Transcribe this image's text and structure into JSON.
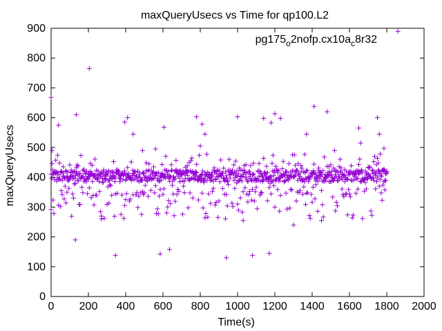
{
  "chart_data": {
    "type": "scatter",
    "title": "maxQueryUsecs vs Time for qp100.L2",
    "xlabel": "Time(s)",
    "ylabel": "maxQueryUsecs",
    "xlim": [
      0,
      2000
    ],
    "ylim": [
      0,
      900
    ],
    "x_ticks": [
      0,
      200,
      400,
      600,
      800,
      1000,
      1200,
      1400,
      1600,
      1800,
      2000
    ],
    "y_ticks": [
      0,
      100,
      200,
      300,
      400,
      500,
      600,
      700,
      800,
      900
    ],
    "grid": false,
    "legend_position": "top-right",
    "marker": "+",
    "series": [
      {
        "name": "pg175_o2nofp.cx10a_c8r32",
        "name_parts": {
          "pre": "pg175",
          "sub1": "o",
          "mid": "2nofp.cx10a",
          "sub2": "c",
          "post": "8r32"
        },
        "color": "#9400d3",
        "time_range": [
          0,
          1800
        ],
        "baseline_band": [
          385,
          425
        ],
        "outliers": [
          [
            0,
            668
          ],
          [
            5,
            490
          ],
          [
            40,
            575
          ],
          [
            135,
            610
          ],
          [
            130,
            190
          ],
          [
            205,
            765
          ],
          [
            345,
            138
          ],
          [
            395,
            585
          ],
          [
            410,
            600
          ],
          [
            440,
            545
          ],
          [
            490,
            490
          ],
          [
            585,
            143
          ],
          [
            635,
            158
          ],
          [
            605,
            568
          ],
          [
            780,
            603
          ],
          [
            810,
            578
          ],
          [
            825,
            545
          ],
          [
            800,
            505
          ],
          [
            940,
            130
          ],
          [
            1000,
            603
          ],
          [
            1080,
            138
          ],
          [
            1140,
            598
          ],
          [
            1170,
            145
          ],
          [
            1200,
            613
          ],
          [
            1230,
            598
          ],
          [
            1180,
            583
          ],
          [
            1410,
            638
          ],
          [
            1370,
            545
          ],
          [
            1480,
            620
          ],
          [
            1520,
            490
          ],
          [
            1650,
            565
          ],
          [
            1750,
            600
          ],
          [
            1785,
            497
          ],
          [
            1760,
            545
          ],
          [
            1660,
            515
          ],
          [
            1300,
            240
          ],
          [
            1030,
            255
          ],
          [
            560,
            495
          ],
          [
            270,
            260
          ],
          [
            1450,
            255
          ]
        ],
        "legend_point": [
          1860,
          890
        ]
      }
    ]
  }
}
